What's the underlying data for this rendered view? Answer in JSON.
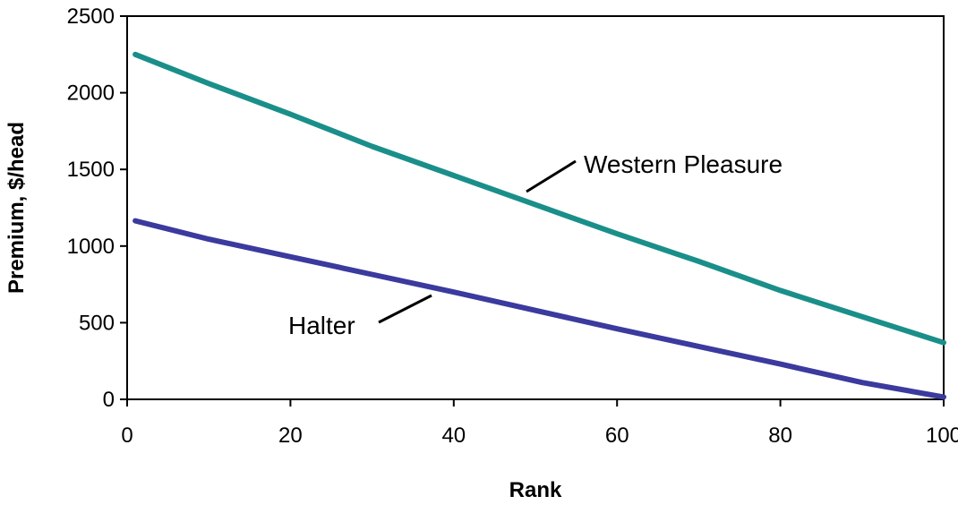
{
  "chart_data": {
    "type": "line",
    "title": "",
    "xlabel": "Rank",
    "ylabel": "Premium, $/head",
    "xlim": [
      0,
      100
    ],
    "ylim": [
      0,
      2500
    ],
    "xticks": [
      0,
      20,
      40,
      60,
      80,
      100
    ],
    "yticks": [
      0,
      500,
      1000,
      1500,
      2000,
      2500
    ],
    "grid": false,
    "legend": "none",
    "series": [
      {
        "name": "Western Pleasure",
        "color": "#1a8f8a",
        "x": [
          1,
          10,
          20,
          30,
          40,
          50,
          60,
          70,
          80,
          90,
          100
        ],
        "y": [
          2250,
          2060,
          1860,
          1650,
          1460,
          1270,
          1080,
          900,
          710,
          540,
          370
        ]
      },
      {
        "name": "Halter",
        "color": "#3b3a9e",
        "x": [
          1,
          10,
          20,
          30,
          40,
          50,
          60,
          70,
          80,
          90,
          100
        ],
        "y": [
          1165,
          1045,
          930,
          815,
          700,
          580,
          460,
          345,
          230,
          110,
          15
        ]
      }
    ]
  }
}
